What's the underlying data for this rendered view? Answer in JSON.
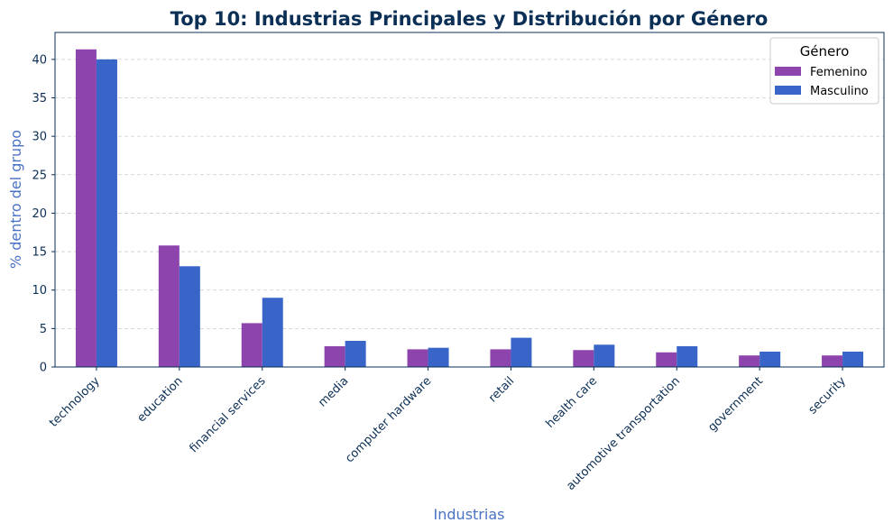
{
  "chart_data": {
    "type": "bar",
    "title": "Top 10: Industrias Principales y Distribución por Género",
    "xlabel": "Industrias",
    "ylabel": "% dentro del grupo",
    "ylim": [
      0,
      43.5
    ],
    "yticks": [
      "0",
      "5",
      "10",
      "15",
      "20",
      "25",
      "30",
      "35",
      "40"
    ],
    "grid": "horizontal dashed",
    "legend": {
      "title": "Género",
      "placement": "top-right"
    },
    "categories": [
      "technology",
      "education",
      "financial services",
      "media",
      "computer hardware",
      "retail",
      "health care",
      "automotive transportation",
      "government",
      "security"
    ],
    "series": [
      {
        "name": "Femenino",
        "color": "#8e44ad",
        "values": [
          41.3,
          15.8,
          5.7,
          2.7,
          2.3,
          2.3,
          2.2,
          1.9,
          1.5,
          1.5
        ]
      },
      {
        "name": "Masculino",
        "color": "#3a65c8",
        "values": [
          40.0,
          13.1,
          9.0,
          3.4,
          2.5,
          3.8,
          2.9,
          2.7,
          2.0,
          2.0
        ]
      }
    ]
  },
  "colors": {
    "title": "#0b2f55",
    "axis_label": "#4a72c4",
    "ticks": "#0b2f55",
    "grid": "#cccccc"
  }
}
